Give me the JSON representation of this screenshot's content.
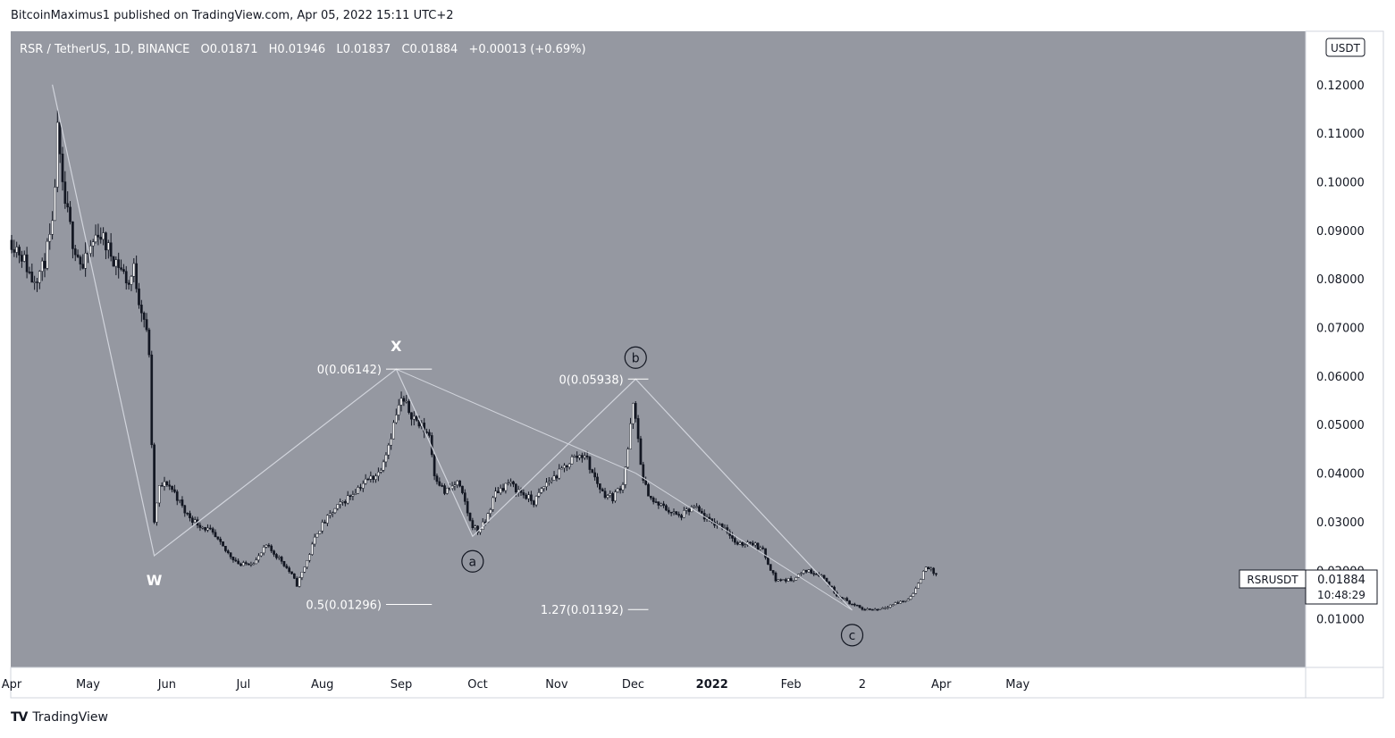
{
  "header": {
    "published": "BitcoinMaximus1 published on TradingView.com, Apr 05, 2022 15:11 UTC+2"
  },
  "legend": {
    "symbol": "RSR / TetherUS, 1D, BINANCE",
    "o_label": "O",
    "open": "0.01871",
    "h_label": "H",
    "high": "0.01946",
    "l_label": "L",
    "low": "0.01837",
    "c_label": "C",
    "close": "0.01884",
    "change": "+0.00013 (+0.69%)"
  },
  "currency_badge": "USDT",
  "price_label": {
    "ticker": "RSRUSDT",
    "price": "0.01884",
    "countdown": "10:48:29"
  },
  "footer": {
    "brand": "TradingView"
  },
  "colors": {
    "pane": "#9598a1",
    "axis_bg": "#ffffff",
    "candle_up": "#ffffff",
    "candle_down": "#131722",
    "wave_line": "#d1d4dc",
    "text_light": "#ffffff",
    "text_dark": "#131722"
  },
  "chart_data": {
    "type": "candlestick",
    "title": "RSR / TetherUS, 1D, BINANCE",
    "ylabel": "USDT",
    "ylim": [
      0.0,
      0.131
    ],
    "y_ticks": [
      "0.12000",
      "0.11000",
      "0.10000",
      "0.09000",
      "0.08000",
      "0.07000",
      "0.06000",
      "0.05000",
      "0.04000",
      "0.03000",
      "0.02000",
      "0.01000"
    ],
    "y_tick_values": [
      0.12,
      0.11,
      0.1,
      0.09,
      0.08,
      0.07,
      0.06,
      0.05,
      0.04,
      0.03,
      0.02,
      0.01
    ],
    "x_ticks": [
      "Apr",
      "May",
      "Jun",
      "Jul",
      "Aug",
      "Sep",
      "Oct",
      "Nov",
      "Dec",
      "2022",
      "Feb",
      "2",
      "Apr",
      "May"
    ],
    "x_tick_days": [
      0,
      30,
      61,
      91,
      122,
      153,
      183,
      214,
      244,
      275,
      306,
      334,
      365,
      395
    ],
    "price_path": [
      [
        0,
        0.088
      ],
      [
        4,
        0.085
      ],
      [
        8,
        0.08
      ],
      [
        12,
        0.082
      ],
      [
        16,
        0.09
      ],
      [
        18,
        0.11
      ],
      [
        20,
        0.098
      ],
      [
        24,
        0.088
      ],
      [
        28,
        0.082
      ],
      [
        30,
        0.085
      ],
      [
        34,
        0.09
      ],
      [
        38,
        0.086
      ],
      [
        42,
        0.083
      ],
      [
        46,
        0.079
      ],
      [
        48,
        0.082
      ],
      [
        50,
        0.076
      ],
      [
        52,
        0.072
      ],
      [
        54,
        0.065
      ],
      [
        55,
        0.045
      ],
      [
        56,
        0.03
      ],
      [
        58,
        0.037
      ],
      [
        61,
        0.038
      ],
      [
        64,
        0.036
      ],
      [
        68,
        0.032
      ],
      [
        72,
        0.03
      ],
      [
        78,
        0.028
      ],
      [
        84,
        0.024
      ],
      [
        90,
        0.021
      ],
      [
        96,
        0.022
      ],
      [
        100,
        0.025
      ],
      [
        106,
        0.022
      ],
      [
        110,
        0.019
      ],
      [
        112,
        0.017
      ],
      [
        116,
        0.022
      ],
      [
        120,
        0.028
      ],
      [
        126,
        0.032
      ],
      [
        132,
        0.035
      ],
      [
        138,
        0.038
      ],
      [
        144,
        0.04
      ],
      [
        148,
        0.046
      ],
      [
        151,
        0.052
      ],
      [
        153,
        0.055
      ],
      [
        156,
        0.053
      ],
      [
        160,
        0.05
      ],
      [
        164,
        0.048
      ],
      [
        166,
        0.04
      ],
      [
        170,
        0.036
      ],
      [
        175,
        0.038
      ],
      [
        178,
        0.034
      ],
      [
        180,
        0.03
      ],
      [
        183,
        0.028
      ],
      [
        186,
        0.03
      ],
      [
        190,
        0.036
      ],
      [
        195,
        0.038
      ],
      [
        200,
        0.036
      ],
      [
        205,
        0.034
      ],
      [
        210,
        0.038
      ],
      [
        215,
        0.04
      ],
      [
        220,
        0.043
      ],
      [
        225,
        0.044
      ],
      [
        228,
        0.04
      ],
      [
        232,
        0.036
      ],
      [
        236,
        0.035
      ],
      [
        240,
        0.038
      ],
      [
        242,
        0.045
      ],
      [
        244,
        0.054
      ],
      [
        246,
        0.047
      ],
      [
        248,
        0.038
      ],
      [
        252,
        0.034
      ],
      [
        256,
        0.033
      ],
      [
        262,
        0.031
      ],
      [
        268,
        0.033
      ],
      [
        274,
        0.03
      ],
      [
        280,
        0.029
      ],
      [
        285,
        0.025
      ],
      [
        290,
        0.026
      ],
      [
        295,
        0.024
      ],
      [
        300,
        0.018
      ],
      [
        306,
        0.018
      ],
      [
        312,
        0.02
      ],
      [
        318,
        0.019
      ],
      [
        324,
        0.015
      ],
      [
        330,
        0.013
      ],
      [
        334,
        0.012
      ],
      [
        340,
        0.012
      ],
      [
        346,
        0.013
      ],
      [
        352,
        0.014
      ],
      [
        356,
        0.017
      ],
      [
        359,
        0.021
      ],
      [
        361,
        0.02
      ],
      [
        363,
        0.019
      ]
    ],
    "annotations": {
      "waves": [
        {
          "label": "W",
          "day": 56,
          "price": 0.023
        },
        {
          "label": "X",
          "day": 151,
          "price": 0.06142
        },
        {
          "label": "a",
          "day": 181,
          "price": 0.027
        },
        {
          "label": "b",
          "day": 245,
          "price": 0.05938
        },
        {
          "label": "c",
          "day": 330,
          "price": 0.0118
        }
      ],
      "wave_path": [
        [
          16,
          0.12
        ],
        [
          56,
          0.023
        ],
        [
          151,
          0.06142
        ],
        [
          181,
          0.027
        ],
        [
          245,
          0.05938
        ],
        [
          330,
          0.0118
        ]
      ],
      "fib_levels": [
        {
          "label": "0(0.06142)",
          "price": 0.06142,
          "day_start": 147,
          "day_end": 165
        },
        {
          "label": "0.5(0.01296)",
          "price": 0.01296,
          "day_start": 147,
          "day_end": 165
        },
        {
          "label": "0(0.05938)",
          "price": 0.05938,
          "day_start": 242,
          "day_end": 250
        },
        {
          "label": "1.27(0.01192)",
          "price": 0.01192,
          "day_start": 242,
          "day_end": 250
        }
      ]
    }
  }
}
